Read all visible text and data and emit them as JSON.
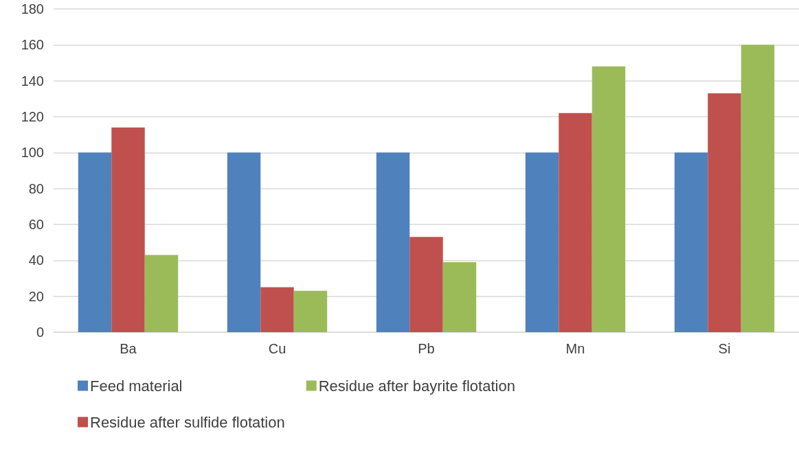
{
  "chart_data": {
    "type": "bar",
    "categories": [
      "Ba",
      "Cu",
      "Pb",
      "Mn",
      "Si"
    ],
    "series": [
      {
        "name": "Feed material",
        "color": "#4f81bd",
        "values": [
          100,
          100,
          100,
          100,
          100
        ]
      },
      {
        "name": "Residue after sulfide flotation",
        "color": "#c0504d",
        "values": [
          114,
          25,
          53,
          122,
          133
        ]
      },
      {
        "name": "Residue after bayrite flotation",
        "color": "#9bbb59",
        "values": [
          43,
          23,
          39,
          148,
          160
        ]
      }
    ],
    "ylim": [
      0,
      180
    ],
    "yticks": [
      0,
      20,
      40,
      60,
      80,
      100,
      120,
      140,
      160,
      180
    ],
    "grid": "y",
    "legend": "bottom left"
  }
}
